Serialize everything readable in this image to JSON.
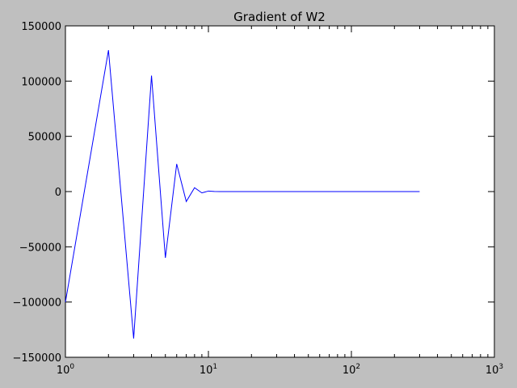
{
  "chart_data": {
    "type": "line",
    "title": "Gradient of W2",
    "xlabel": "",
    "ylabel": "",
    "xscale": "log",
    "xlim": [
      1,
      1000
    ],
    "ylim": [
      -150000,
      150000
    ],
    "grid": false,
    "line_color": "#0000ff",
    "x_ticks": [
      {
        "value": 1,
        "base": "10",
        "exp": "0"
      },
      {
        "value": 10,
        "base": "10",
        "exp": "1"
      },
      {
        "value": 100,
        "base": "10",
        "exp": "2"
      },
      {
        "value": 1000,
        "base": "10",
        "exp": "3"
      }
    ],
    "y_ticks": [
      {
        "value": 150000,
        "label": "150000"
      },
      {
        "value": 100000,
        "label": "100000"
      },
      {
        "value": 50000,
        "label": "50000"
      },
      {
        "value": 0,
        "label": "0"
      },
      {
        "value": -50000,
        "label": "−50000"
      },
      {
        "value": -100000,
        "label": "−100000"
      },
      {
        "value": -150000,
        "label": "−150000"
      }
    ],
    "series": [
      {
        "x": [
          1,
          2,
          3,
          4,
          5,
          6,
          7,
          8,
          9,
          10,
          11,
          12,
          300
        ],
        "y": [
          -100000,
          128000,
          -133000,
          105000,
          -60000,
          25000,
          -9000,
          3500,
          -1200,
          500,
          100,
          0,
          0
        ]
      }
    ]
  }
}
